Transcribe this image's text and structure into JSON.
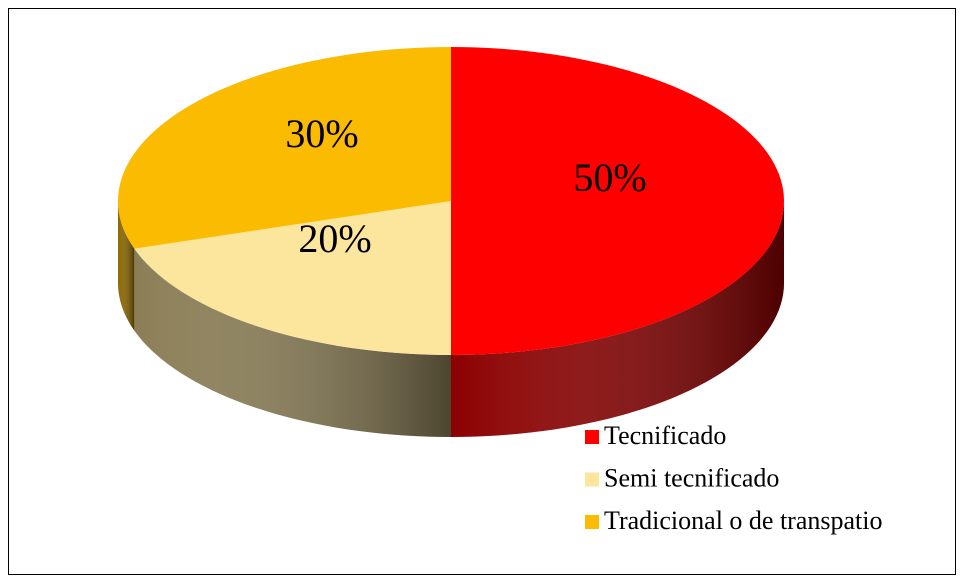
{
  "chart_data": {
    "type": "pie3d",
    "categories": [
      "Tecnificado",
      "Semi tecnificado",
      "Tradicional o de transpatio"
    ],
    "values": [
      50,
      20,
      30
    ],
    "value_labels": [
      "50%",
      "20%",
      "30%"
    ],
    "colors": [
      "#ff0000",
      "#fce59d",
      "#fbbb00"
    ],
    "legend": "bottom-right"
  }
}
